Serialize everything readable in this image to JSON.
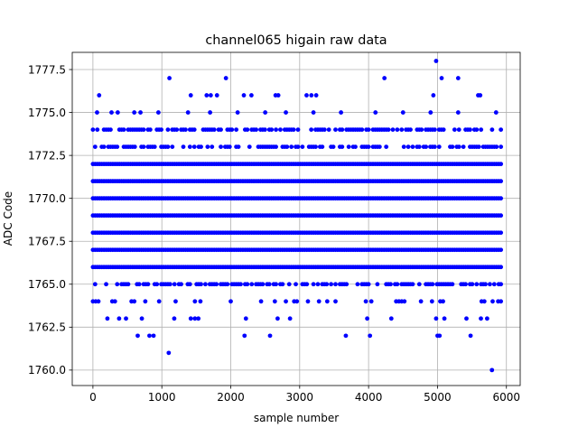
{
  "chart_data": {
    "type": "scatter",
    "title": "channel065 higain raw data",
    "xlabel": "sample number",
    "ylabel": "ADC Code",
    "xlim": [
      -300,
      6200
    ],
    "ylim": [
      1759.1,
      1778.5
    ],
    "xticks": [
      0,
      1000,
      2000,
      3000,
      4000,
      5000,
      6000
    ],
    "xtick_labels": [
      "0",
      "1000",
      "2000",
      "3000",
      "4000",
      "5000",
      "6000"
    ],
    "yticks": [
      1760.0,
      1762.5,
      1765.0,
      1767.5,
      1770.0,
      1772.5,
      1775.0,
      1777.5
    ],
    "ytick_labels": [
      "1760.0",
      "1762.5",
      "1765.0",
      "1767.5",
      "1770.0",
      "1772.5",
      "1775.0",
      "1777.5"
    ],
    "grid": true,
    "marker_color": "#0000ff",
    "n_samples": 5940,
    "value_levels": [
      1760,
      1761,
      1762,
      1763,
      1764,
      1765,
      1766,
      1767,
      1768,
      1769,
      1770,
      1771,
      1772,
      1773,
      1774,
      1775,
      1776,
      1777,
      1778
    ],
    "dense_levels": [
      1766,
      1767,
      1768,
      1769,
      1770,
      1771,
      1772
    ],
    "semi_dense_levels": [
      1765,
      1773,
      1774
    ],
    "sparse_points": [
      {
        "x": 60,
        "y": 1775
      },
      {
        "x": 90,
        "y": 1776
      },
      {
        "x": 270,
        "y": 1775
      },
      {
        "x": 360,
        "y": 1775
      },
      {
        "x": 600,
        "y": 1775
      },
      {
        "x": 690,
        "y": 1775
      },
      {
        "x": 950,
        "y": 1775
      },
      {
        "x": 1380,
        "y": 1775
      },
      {
        "x": 1700,
        "y": 1775
      },
      {
        "x": 2100,
        "y": 1775
      },
      {
        "x": 2500,
        "y": 1775
      },
      {
        "x": 2800,
        "y": 1775
      },
      {
        "x": 3200,
        "y": 1775
      },
      {
        "x": 3600,
        "y": 1775
      },
      {
        "x": 4100,
        "y": 1775
      },
      {
        "x": 4500,
        "y": 1775
      },
      {
        "x": 4900,
        "y": 1775
      },
      {
        "x": 5300,
        "y": 1775
      },
      {
        "x": 5850,
        "y": 1775
      },
      {
        "x": 1420,
        "y": 1776
      },
      {
        "x": 1650,
        "y": 1776
      },
      {
        "x": 1710,
        "y": 1776
      },
      {
        "x": 1800,
        "y": 1776
      },
      {
        "x": 2190,
        "y": 1776
      },
      {
        "x": 2300,
        "y": 1776
      },
      {
        "x": 2650,
        "y": 1776
      },
      {
        "x": 2690,
        "y": 1776
      },
      {
        "x": 3100,
        "y": 1776
      },
      {
        "x": 3170,
        "y": 1776
      },
      {
        "x": 3240,
        "y": 1776
      },
      {
        "x": 4940,
        "y": 1776
      },
      {
        "x": 5590,
        "y": 1776
      },
      {
        "x": 5620,
        "y": 1776
      },
      {
        "x": 1110,
        "y": 1777
      },
      {
        "x": 1930,
        "y": 1777
      },
      {
        "x": 4230,
        "y": 1777
      },
      {
        "x": 5060,
        "y": 1777
      },
      {
        "x": 5300,
        "y": 1777
      },
      {
        "x": 4980,
        "y": 1778
      },
      {
        "x": 210,
        "y": 1763
      },
      {
        "x": 380,
        "y": 1763
      },
      {
        "x": 480,
        "y": 1763
      },
      {
        "x": 710,
        "y": 1763
      },
      {
        "x": 1180,
        "y": 1763
      },
      {
        "x": 1420,
        "y": 1763
      },
      {
        "x": 1480,
        "y": 1763
      },
      {
        "x": 1530,
        "y": 1763
      },
      {
        "x": 2220,
        "y": 1763
      },
      {
        "x": 2680,
        "y": 1763
      },
      {
        "x": 2860,
        "y": 1763
      },
      {
        "x": 3980,
        "y": 1763
      },
      {
        "x": 4330,
        "y": 1763
      },
      {
        "x": 4980,
        "y": 1763
      },
      {
        "x": 5100,
        "y": 1763
      },
      {
        "x": 5420,
        "y": 1763
      },
      {
        "x": 5630,
        "y": 1763
      },
      {
        "x": 5720,
        "y": 1763
      },
      {
        "x": 650,
        "y": 1762
      },
      {
        "x": 820,
        "y": 1762
      },
      {
        "x": 880,
        "y": 1762
      },
      {
        "x": 2200,
        "y": 1762
      },
      {
        "x": 2570,
        "y": 1762
      },
      {
        "x": 3670,
        "y": 1762
      },
      {
        "x": 4020,
        "y": 1762
      },
      {
        "x": 5000,
        "y": 1762
      },
      {
        "x": 5030,
        "y": 1762
      },
      {
        "x": 5480,
        "y": 1762
      },
      {
        "x": 1100,
        "y": 1761
      },
      {
        "x": 5790,
        "y": 1760
      }
    ]
  }
}
